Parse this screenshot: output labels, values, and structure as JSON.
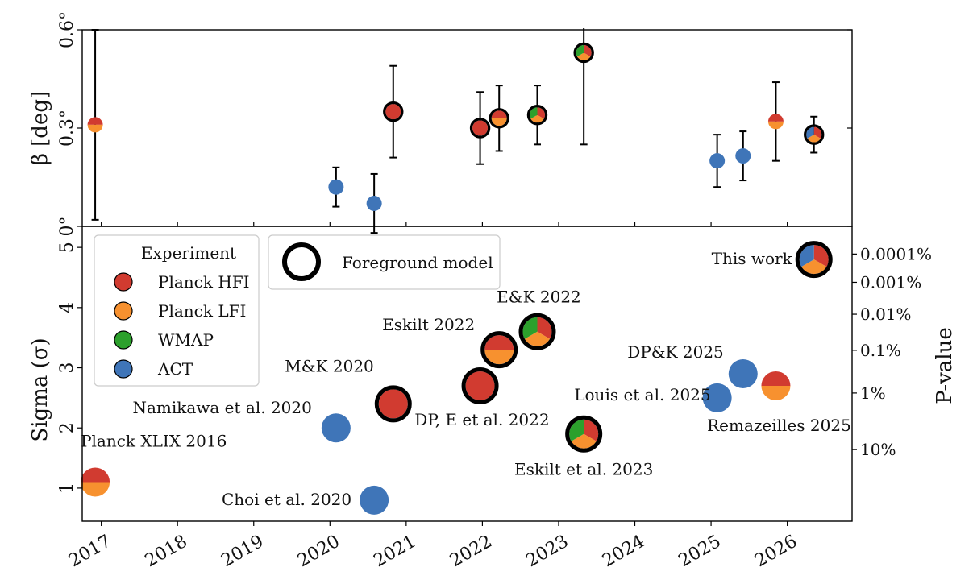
{
  "colors": {
    "Planck HFI": "#d13b30",
    "Planck LFI": "#f7912f",
    "WMAP": "#2ca02c",
    "ACT": "#3f75b8"
  },
  "chart_data": [
    {
      "type": "scatter",
      "title": "",
      "xlabel": "",
      "ylabel": "β [deg]",
      "xlim": [
        2016.75,
        2026.85
      ],
      "ylim": [
        0,
        0.6
      ],
      "x_ticks": [
        2017,
        2018,
        2019,
        2020,
        2021,
        2022,
        2023,
        2024,
        2025,
        2026
      ],
      "y_ticks": [
        {
          "value": 0,
          "label": "0°"
        },
        {
          "value": 0.3,
          "label": "0.3°"
        },
        {
          "value": 0.6,
          "label": "0.6°"
        }
      ],
      "points": [
        {
          "x": 2016.92,
          "y": 0.31,
          "err": 0.29,
          "experiments": [
            "Planck HFI",
            "Planck LFI"
          ],
          "foreground": false
        },
        {
          "x": 2020.08,
          "y": 0.12,
          "err": 0.06,
          "experiments": [
            "ACT"
          ],
          "foreground": false
        },
        {
          "x": 2020.58,
          "y": 0.07,
          "err": 0.09,
          "experiments": [
            "ACT"
          ],
          "foreground": false
        },
        {
          "x": 2020.83,
          "y": 0.35,
          "err": 0.14,
          "experiments": [
            "Planck HFI"
          ],
          "foreground": true
        },
        {
          "x": 2021.97,
          "y": 0.3,
          "err": 0.11,
          "experiments": [
            "Planck HFI"
          ],
          "foreground": true
        },
        {
          "x": 2022.22,
          "y": 0.33,
          "err": 0.1,
          "experiments": [
            "Planck HFI",
            "Planck LFI"
          ],
          "foreground": true
        },
        {
          "x": 2022.72,
          "y": 0.34,
          "err": 0.09,
          "experiments": [
            "Planck HFI",
            "Planck LFI",
            "WMAP"
          ],
          "foreground": true
        },
        {
          "x": 2023.33,
          "y": 0.53,
          "err": 0.28,
          "experiments": [
            "Planck HFI",
            "Planck LFI",
            "WMAP"
          ],
          "foreground": true
        },
        {
          "x": 2025.08,
          "y": 0.2,
          "err": 0.08,
          "experiments": [
            "ACT"
          ],
          "foreground": false
        },
        {
          "x": 2025.42,
          "y": 0.215,
          "err": 0.075,
          "experiments": [
            "ACT"
          ],
          "foreground": false
        },
        {
          "x": 2025.85,
          "y": 0.32,
          "err": 0.12,
          "experiments": [
            "Planck HFI",
            "Planck LFI"
          ],
          "foreground": false
        },
        {
          "x": 2026.35,
          "y": 0.28,
          "err": 0.055,
          "experiments": [
            "Planck HFI",
            "Planck LFI",
            "ACT"
          ],
          "foreground": true
        }
      ]
    },
    {
      "type": "scatter",
      "title": "",
      "xlabel": "",
      "ylabel": "Sigma (σ)",
      "y2label": "P-value",
      "xlim": [
        2016.75,
        2026.85
      ],
      "ylim": [
        0.45,
        5.35
      ],
      "x_ticks": [
        2017,
        2018,
        2019,
        2020,
        2021,
        2022,
        2023,
        2024,
        2025,
        2026
      ],
      "y_ticks": [
        1,
        2,
        3,
        4,
        5
      ],
      "p_ticks": [
        {
          "label": "10%",
          "sigma": 1.64
        },
        {
          "label": "1%",
          "sigma": 2.58
        },
        {
          "label": "0.1%",
          "sigma": 3.29
        },
        {
          "label": "0.01%",
          "sigma": 3.89
        },
        {
          "label": "0.001%",
          "sigma": 4.42
        },
        {
          "label": "0.0001%",
          "sigma": 4.89
        }
      ],
      "legend": {
        "title": "Experiment",
        "entries": [
          "Planck HFI",
          "Planck LFI",
          "WMAP",
          "ACT"
        ],
        "foreground_label": "Foreground model"
      },
      "points": [
        {
          "label": "Planck XLIX 2016",
          "x": 2016.92,
          "y": 1.1,
          "experiments": [
            "Planck HFI",
            "Planck LFI"
          ],
          "foreground": false
        },
        {
          "label": "Namikawa et al. 2020",
          "x": 2020.08,
          "y": 2.0,
          "experiments": [
            "ACT"
          ],
          "foreground": false
        },
        {
          "label": "Choi et al. 2020",
          "x": 2020.58,
          "y": 0.8,
          "experiments": [
            "ACT"
          ],
          "foreground": false
        },
        {
          "label": "M&K 2020",
          "x": 2020.83,
          "y": 2.4,
          "experiments": [
            "Planck HFI"
          ],
          "foreground": true
        },
        {
          "label": "DP, E et al. 2022",
          "x": 2021.97,
          "y": 2.7,
          "experiments": [
            "Planck HFI"
          ],
          "foreground": true
        },
        {
          "label": "Eskilt 2022",
          "x": 2022.22,
          "y": 3.3,
          "experiments": [
            "Planck HFI",
            "Planck LFI"
          ],
          "foreground": true
        },
        {
          "label": "E&K 2022",
          "x": 2022.72,
          "y": 3.6,
          "experiments": [
            "Planck HFI",
            "Planck LFI",
            "WMAP"
          ],
          "foreground": true
        },
        {
          "label": "Eskilt et al. 2023",
          "x": 2023.33,
          "y": 1.9,
          "experiments": [
            "Planck HFI",
            "Planck LFI",
            "WMAP"
          ],
          "foreground": true
        },
        {
          "label": "Louis et al. 2025",
          "x": 2025.08,
          "y": 2.5,
          "experiments": [
            "ACT"
          ],
          "foreground": false
        },
        {
          "label": "DP&K 2025",
          "x": 2025.42,
          "y": 2.9,
          "experiments": [
            "ACT"
          ],
          "foreground": false
        },
        {
          "label": "Remazeilles 2025",
          "x": 2025.85,
          "y": 2.7,
          "experiments": [
            "Planck HFI",
            "Planck LFI"
          ],
          "foreground": false
        },
        {
          "label": "This work",
          "x": 2026.35,
          "y": 4.8,
          "experiments": [
            "Planck HFI",
            "Planck LFI",
            "ACT"
          ],
          "foreground": true
        }
      ]
    }
  ]
}
